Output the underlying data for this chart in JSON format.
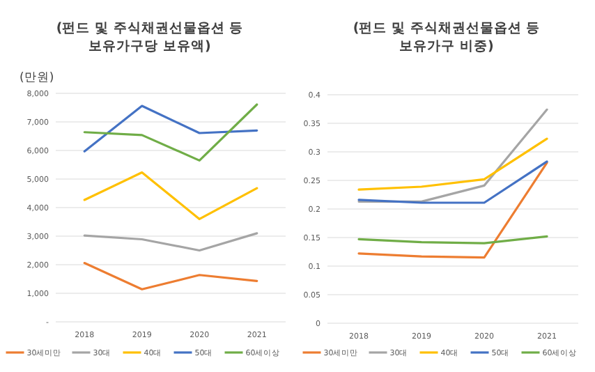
{
  "chart_data": [
    {
      "type": "line",
      "title": "(펀드 및 주식채권선물옵션 등 보유가구당 보유액)",
      "ylabel": "(만원)",
      "categories": [
        "2018",
        "2019",
        "2020",
        "2021"
      ],
      "series": [
        {
          "name": "30세미만",
          "color": "#ed7d31",
          "values": [
            2060,
            1140,
            1640,
            1430
          ]
        },
        {
          "name": "30대",
          "color": "#a5a5a5",
          "values": [
            3020,
            2890,
            2500,
            3100
          ]
        },
        {
          "name": "40대",
          "color": "#ffc000",
          "values": [
            4270,
            5230,
            3600,
            4680
          ]
        },
        {
          "name": "50대",
          "color": "#4472c4",
          "values": [
            5970,
            7560,
            6610,
            6700
          ]
        },
        {
          "name": "60세이상",
          "color": "#70ad47",
          "values": [
            6640,
            6540,
            5650,
            7610
          ]
        }
      ],
      "ylim": [
        0,
        8000
      ],
      "yticks": [
        {
          "value": 0,
          "label": "-"
        },
        {
          "value": 1000,
          "label": "1,000"
        },
        {
          "value": 2000,
          "label": "2,000"
        },
        {
          "value": 3000,
          "label": "3,000"
        },
        {
          "value": 4000,
          "label": "4,000"
        },
        {
          "value": 5000,
          "label": "5,000"
        },
        {
          "value": 6000,
          "label": "6,000"
        },
        {
          "value": 7000,
          "label": "7,000"
        },
        {
          "value": 8000,
          "label": "8,000"
        }
      ],
      "grid": "y",
      "legend": "bottom"
    },
    {
      "type": "line",
      "title": "(펀드 및 주식채권선물옵션 등 보유가구 비중)",
      "categories": [
        "2018",
        "2019",
        "2020",
        "2021"
      ],
      "series": [
        {
          "name": "30세미만",
          "color": "#ed7d31",
          "values": [
            0.122,
            0.117,
            0.115,
            0.281
          ]
        },
        {
          "name": "30대",
          "color": "#a5a5a5",
          "values": [
            0.213,
            0.213,
            0.241,
            0.374
          ]
        },
        {
          "name": "40대",
          "color": "#ffc000",
          "values": [
            0.234,
            0.239,
            0.252,
            0.323
          ]
        },
        {
          "name": "50대",
          "color": "#4472c4",
          "values": [
            0.216,
            0.211,
            0.211,
            0.283
          ]
        },
        {
          "name": "60세이상",
          "color": "#70ad47",
          "values": [
            0.147,
            0.142,
            0.14,
            0.152
          ]
        }
      ],
      "ylim": [
        0,
        0.4
      ],
      "yticks": [
        0,
        0.05,
        0.1,
        0.15,
        0.2,
        0.25,
        0.3,
        0.35,
        0.4
      ],
      "grid": "y",
      "legend": "bottom"
    }
  ]
}
